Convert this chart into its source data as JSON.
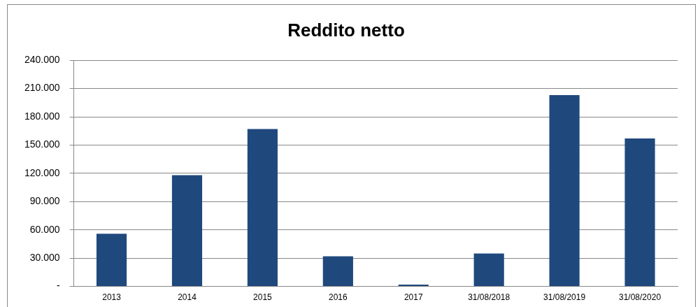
{
  "chart_data": {
    "type": "bar",
    "title": "Reddito netto",
    "categories": [
      "2013",
      "2014",
      "2015",
      "2016",
      "2017",
      "31/08/2018",
      "31/08/2019",
      "31/08/2020"
    ],
    "values": [
      56000,
      118000,
      167000,
      32000,
      2000,
      35000,
      203000,
      157000
    ],
    "color": "#1f497d",
    "ylim": [
      0,
      240000
    ],
    "yticks": [
      {
        "value": 0,
        "label": "-"
      },
      {
        "value": 30000,
        "label": "30.000"
      },
      {
        "value": 60000,
        "label": "60.000"
      },
      {
        "value": 90000,
        "label": "90.000"
      },
      {
        "value": 120000,
        "label": "120.000"
      },
      {
        "value": 150000,
        "label": "150.000"
      },
      {
        "value": 180000,
        "label": "180.000"
      },
      {
        "value": 210000,
        "label": "210.000"
      },
      {
        "value": 240000,
        "label": "240.000"
      }
    ],
    "grid": "y",
    "legend": false
  }
}
